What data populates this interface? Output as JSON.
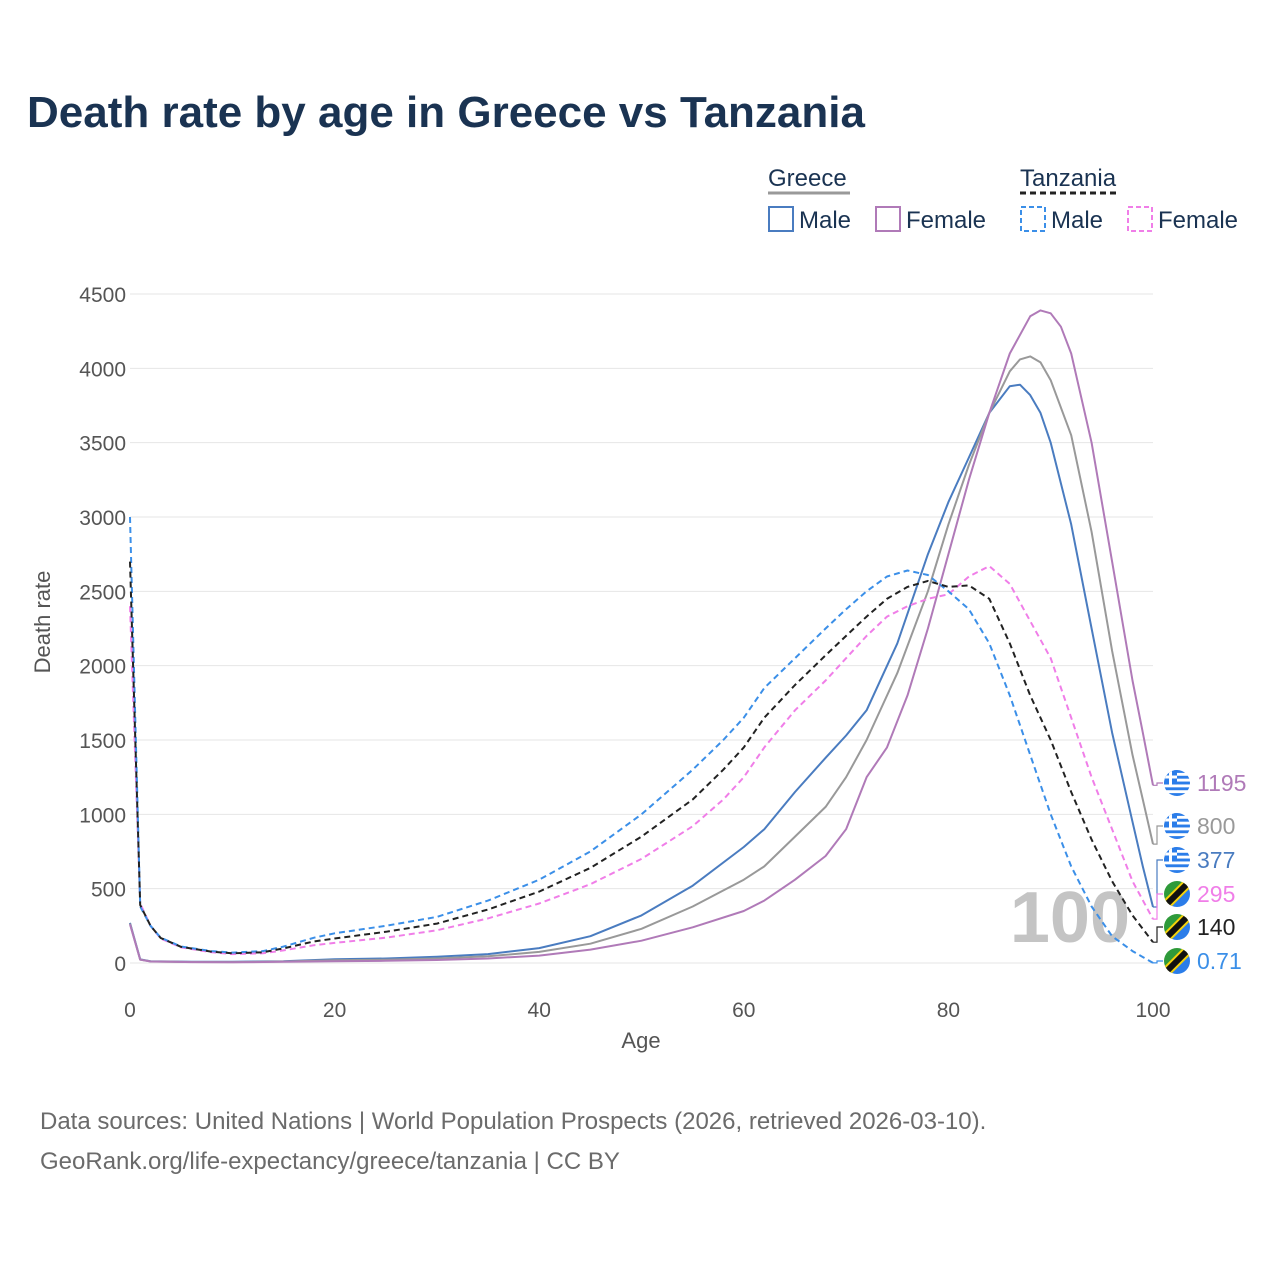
{
  "chart_data": {
    "type": "line",
    "title": "Death rate by age in Greece vs Tanzania",
    "xlabel": "Age",
    "ylabel": "Death rate",
    "xlim": [
      0,
      100
    ],
    "ylim": [
      0,
      4500
    ],
    "x_ticks": [
      0,
      20,
      40,
      60,
      80,
      100
    ],
    "y_ticks": [
      0,
      500,
      1000,
      1500,
      2000,
      2500,
      3000,
      3500,
      4000,
      4500
    ],
    "watermark": "100",
    "legend": {
      "groups": [
        {
          "name": "Greece",
          "style": "solid",
          "color": "#999999",
          "entries": [
            "Male",
            "Female"
          ]
        },
        {
          "name": "Tanzania",
          "style": "dashed",
          "color": "#222222",
          "entries": [
            "Male",
            "Female"
          ]
        }
      ]
    },
    "series": [
      {
        "name": "Greece Male",
        "country": "Greece",
        "sex": "Male",
        "style": "solid",
        "color": "#4a7cc0",
        "points": [
          [
            0,
            270
          ],
          [
            1,
            25
          ],
          [
            2,
            12
          ],
          [
            4,
            10
          ],
          [
            6,
            8
          ],
          [
            10,
            8
          ],
          [
            15,
            12
          ],
          [
            20,
            25
          ],
          [
            25,
            30
          ],
          [
            30,
            42
          ],
          [
            35,
            60
          ],
          [
            40,
            100
          ],
          [
            45,
            180
          ],
          [
            50,
            320
          ],
          [
            55,
            520
          ],
          [
            60,
            780
          ],
          [
            62,
            900
          ],
          [
            65,
            1150
          ],
          [
            68,
            1380
          ],
          [
            70,
            1530
          ],
          [
            72,
            1700
          ],
          [
            75,
            2150
          ],
          [
            78,
            2750
          ],
          [
            80,
            3100
          ],
          [
            82,
            3400
          ],
          [
            84,
            3700
          ],
          [
            86,
            3880
          ],
          [
            87,
            3890
          ],
          [
            88,
            3820
          ],
          [
            89,
            3700
          ],
          [
            90,
            3500
          ],
          [
            92,
            2950
          ],
          [
            94,
            2250
          ],
          [
            96,
            1550
          ],
          [
            98,
            950
          ],
          [
            99,
            650
          ],
          [
            100,
            377
          ]
        ],
        "end_value": 377,
        "end_label": "377"
      },
      {
        "name": "Greece Female",
        "country": "Greece",
        "sex": "Female",
        "style": "solid",
        "color": "#b07ab8",
        "points": [
          [
            0,
            260
          ],
          [
            1,
            22
          ],
          [
            2,
            10
          ],
          [
            4,
            8
          ],
          [
            6,
            6
          ],
          [
            10,
            5
          ],
          [
            15,
            8
          ],
          [
            20,
            12
          ],
          [
            25,
            15
          ],
          [
            30,
            20
          ],
          [
            35,
            30
          ],
          [
            40,
            50
          ],
          [
            45,
            90
          ],
          [
            50,
            150
          ],
          [
            55,
            240
          ],
          [
            60,
            350
          ],
          [
            62,
            420
          ],
          [
            65,
            560
          ],
          [
            68,
            720
          ],
          [
            70,
            900
          ],
          [
            72,
            1250
          ],
          [
            74,
            1450
          ],
          [
            76,
            1800
          ],
          [
            78,
            2250
          ],
          [
            80,
            2750
          ],
          [
            82,
            3250
          ],
          [
            84,
            3700
          ],
          [
            86,
            4100
          ],
          [
            88,
            4350
          ],
          [
            89,
            4390
          ],
          [
            90,
            4370
          ],
          [
            91,
            4280
          ],
          [
            92,
            4100
          ],
          [
            94,
            3500
          ],
          [
            96,
            2700
          ],
          [
            98,
            1900
          ],
          [
            99,
            1550
          ],
          [
            100,
            1195
          ]
        ],
        "end_value": 1195,
        "end_label": "1195"
      },
      {
        "name": "Greece Total",
        "country": "Greece",
        "sex": "Both",
        "style": "solid",
        "color": "#999999",
        "points": [
          [
            0,
            265
          ],
          [
            1,
            23
          ],
          [
            2,
            11
          ],
          [
            4,
            9
          ],
          [
            6,
            7
          ],
          [
            10,
            6
          ],
          [
            15,
            10
          ],
          [
            20,
            18
          ],
          [
            25,
            22
          ],
          [
            30,
            30
          ],
          [
            35,
            45
          ],
          [
            40,
            75
          ],
          [
            45,
            130
          ],
          [
            50,
            230
          ],
          [
            55,
            380
          ],
          [
            60,
            560
          ],
          [
            62,
            650
          ],
          [
            65,
            850
          ],
          [
            68,
            1050
          ],
          [
            70,
            1250
          ],
          [
            72,
            1500
          ],
          [
            75,
            1950
          ],
          [
            78,
            2500
          ],
          [
            80,
            2950
          ],
          [
            82,
            3350
          ],
          [
            84,
            3700
          ],
          [
            86,
            3980
          ],
          [
            87,
            4060
          ],
          [
            88,
            4080
          ],
          [
            89,
            4040
          ],
          [
            90,
            3920
          ],
          [
            92,
            3550
          ],
          [
            94,
            2900
          ],
          [
            96,
            2100
          ],
          [
            98,
            1400
          ],
          [
            99,
            1100
          ],
          [
            100,
            800
          ]
        ],
        "end_value": 800,
        "end_label": "800"
      },
      {
        "name": "Tanzania Male",
        "country": "Tanzania",
        "sex": "Male",
        "style": "dashed",
        "color": "#3b8fe8",
        "points": [
          [
            0,
            3000
          ],
          [
            1,
            380
          ],
          [
            2,
            250
          ],
          [
            3,
            170
          ],
          [
            5,
            110
          ],
          [
            8,
            80
          ],
          [
            10,
            70
          ],
          [
            13,
            80
          ],
          [
            15,
            110
          ],
          [
            18,
            170
          ],
          [
            20,
            200
          ],
          [
            25,
            250
          ],
          [
            30,
            310
          ],
          [
            35,
            420
          ],
          [
            40,
            560
          ],
          [
            45,
            750
          ],
          [
            50,
            1000
          ],
          [
            55,
            1300
          ],
          [
            58,
            1500
          ],
          [
            60,
            1650
          ],
          [
            62,
            1850
          ],
          [
            65,
            2050
          ],
          [
            68,
            2250
          ],
          [
            70,
            2380
          ],
          [
            72,
            2500
          ],
          [
            74,
            2600
          ],
          [
            76,
            2640
          ],
          [
            78,
            2610
          ],
          [
            80,
            2500
          ],
          [
            82,
            2380
          ],
          [
            84,
            2150
          ],
          [
            86,
            1800
          ],
          [
            88,
            1400
          ],
          [
            90,
            1000
          ],
          [
            92,
            650
          ],
          [
            94,
            380
          ],
          [
            96,
            180
          ],
          [
            98,
            80
          ],
          [
            100,
            0.71
          ]
        ],
        "end_value": 0.71,
        "end_label": "0.71"
      },
      {
        "name": "Tanzania Female",
        "country": "Tanzania",
        "sex": "Female",
        "style": "dashed",
        "color": "#f07ee8",
        "points": [
          [
            0,
            2400
          ],
          [
            1,
            400
          ],
          [
            2,
            250
          ],
          [
            3,
            165
          ],
          [
            5,
            105
          ],
          [
            8,
            72
          ],
          [
            10,
            60
          ],
          [
            13,
            65
          ],
          [
            15,
            85
          ],
          [
            18,
            120
          ],
          [
            20,
            135
          ],
          [
            25,
            170
          ],
          [
            30,
            220
          ],
          [
            35,
            300
          ],
          [
            40,
            400
          ],
          [
            45,
            530
          ],
          [
            50,
            700
          ],
          [
            55,
            920
          ],
          [
            58,
            1100
          ],
          [
            60,
            1250
          ],
          [
            62,
            1450
          ],
          [
            65,
            1700
          ],
          [
            68,
            1900
          ],
          [
            70,
            2050
          ],
          [
            72,
            2200
          ],
          [
            74,
            2330
          ],
          [
            76,
            2400
          ],
          [
            78,
            2450
          ],
          [
            80,
            2480
          ],
          [
            82,
            2600
          ],
          [
            84,
            2670
          ],
          [
            86,
            2550
          ],
          [
            88,
            2300
          ],
          [
            90,
            2050
          ],
          [
            92,
            1650
          ],
          [
            94,
            1250
          ],
          [
            96,
            900
          ],
          [
            98,
            550
          ],
          [
            100,
            295
          ]
        ],
        "end_value": 295,
        "end_label": "295"
      },
      {
        "name": "Tanzania Total",
        "country": "Tanzania",
        "sex": "Both",
        "style": "dashed",
        "color": "#222222",
        "points": [
          [
            0,
            2700
          ],
          [
            1,
            390
          ],
          [
            2,
            250
          ],
          [
            3,
            168
          ],
          [
            5,
            108
          ],
          [
            8,
            76
          ],
          [
            10,
            65
          ],
          [
            13,
            72
          ],
          [
            15,
            98
          ],
          [
            18,
            145
          ],
          [
            20,
            165
          ],
          [
            25,
            210
          ],
          [
            30,
            265
          ],
          [
            35,
            360
          ],
          [
            40,
            480
          ],
          [
            45,
            640
          ],
          [
            50,
            850
          ],
          [
            55,
            1100
          ],
          [
            58,
            1300
          ],
          [
            60,
            1450
          ],
          [
            62,
            1650
          ],
          [
            65,
            1870
          ],
          [
            68,
            2070
          ],
          [
            70,
            2200
          ],
          [
            72,
            2330
          ],
          [
            74,
            2450
          ],
          [
            76,
            2530
          ],
          [
            78,
            2570
          ],
          [
            80,
            2530
          ],
          [
            82,
            2540
          ],
          [
            84,
            2450
          ],
          [
            86,
            2150
          ],
          [
            88,
            1800
          ],
          [
            90,
            1500
          ],
          [
            92,
            1150
          ],
          [
            94,
            830
          ],
          [
            96,
            550
          ],
          [
            98,
            320
          ],
          [
            100,
            140
          ]
        ],
        "end_value": 140,
        "end_label": "140"
      }
    ],
    "end_label_order": [
      {
        "series": "Greece Female",
        "flag": "greece-flag"
      },
      {
        "series": "Greece Total",
        "flag": "greece-flag"
      },
      {
        "series": "Greece Male",
        "flag": "greece-flag"
      },
      {
        "series": "Tanzania Female",
        "flag": "tanzania-flag"
      },
      {
        "series": "Tanzania Total",
        "flag": "tanzania-flag"
      },
      {
        "series": "Tanzania Male",
        "flag": "tanzania-flag"
      }
    ]
  },
  "footer": {
    "source": "Data sources: United Nations | World Population Prospects (2026, retrieved 2026-03-10).",
    "credit": "GeoRank.org/life-expectancy/greece/tanzania | CC BY"
  },
  "colors": {
    "title": "#1a3352",
    "grid": "#e6e6e6",
    "axis_text": "#555555",
    "watermark": "#c4c4c4",
    "greece_flag_blue": "#2b7de9",
    "tanzania_flag_green": "#2e9a3a",
    "tanzania_flag_blue": "#2b7de9",
    "tanzania_flag_yellow": "#f5d20a"
  }
}
